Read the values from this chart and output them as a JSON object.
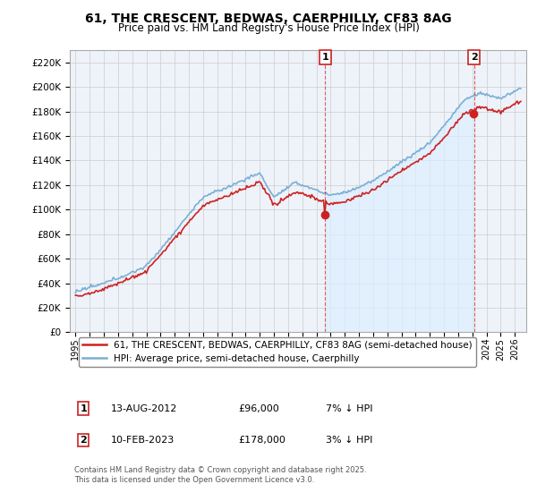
{
  "title": "61, THE CRESCENT, BEDWAS, CAERPHILLY, CF83 8AG",
  "subtitle": "Price paid vs. HM Land Registry's House Price Index (HPI)",
  "ylabel_ticks": [
    "£0",
    "£20K",
    "£40K",
    "£60K",
    "£80K",
    "£100K",
    "£120K",
    "£140K",
    "£160K",
    "£180K",
    "£200K",
    "£220K"
  ],
  "ytick_values": [
    0,
    20000,
    40000,
    60000,
    80000,
    100000,
    120000,
    140000,
    160000,
    180000,
    200000,
    220000
  ],
  "ylim": [
    0,
    230000
  ],
  "year_start": 1995,
  "year_end": 2026,
  "hpi_color": "#7bafd4",
  "price_color": "#cc2222",
  "marker1_year": 2012.619,
  "marker1_value": 96000,
  "marker2_year": 2023.119,
  "marker2_value": 178000,
  "shade_color": "#ddeeff",
  "legend_label1": "61, THE CRESCENT, BEDWAS, CAERPHILLY, CF83 8AG (semi-detached house)",
  "legend_label2": "HPI: Average price, semi-detached house, Caerphilly",
  "footnote": "Contains HM Land Registry data © Crown copyright and database right 2025.\nThis data is licensed under the Open Government Licence v3.0.",
  "background_color": "#ffffff",
  "grid_color": "#cccccc",
  "plot_bg": "#eef3fa"
}
